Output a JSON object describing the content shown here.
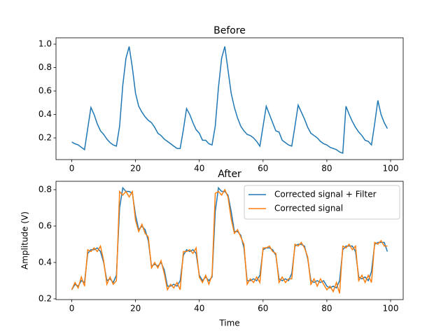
{
  "chart_data": [
    {
      "type": "line",
      "title": "Before",
      "x": [
        0,
        1,
        2,
        3,
        4,
        5,
        6,
        7,
        8,
        9,
        10,
        11,
        12,
        13,
        14,
        15,
        16,
        17,
        18,
        19,
        20,
        21,
        22,
        23,
        24,
        25,
        26,
        27,
        28,
        29,
        30,
        31,
        32,
        33,
        34,
        35,
        36,
        37,
        38,
        39,
        40,
        41,
        42,
        43,
        44,
        45,
        46,
        47,
        48,
        49,
        50,
        51,
        52,
        53,
        54,
        55,
        56,
        57,
        58,
        59,
        60,
        61,
        62,
        63,
        64,
        65,
        66,
        67,
        68,
        69,
        70,
        71,
        72,
        73,
        74,
        75,
        76,
        77,
        78,
        79,
        80,
        81,
        82,
        83,
        84,
        85,
        86,
        87,
        88,
        89,
        90,
        91,
        92,
        93,
        94,
        95,
        96,
        97,
        98,
        99
      ],
      "series": [
        {
          "color": "#1f77b4",
          "values": [
            0.165,
            0.15,
            0.14,
            0.12,
            0.1,
            0.28,
            0.46,
            0.4,
            0.32,
            0.26,
            0.23,
            0.19,
            0.16,
            0.14,
            0.13,
            0.3,
            0.65,
            0.88,
            0.98,
            0.8,
            0.58,
            0.47,
            0.42,
            0.38,
            0.35,
            0.33,
            0.29,
            0.24,
            0.22,
            0.19,
            0.17,
            0.15,
            0.13,
            0.11,
            0.11,
            0.27,
            0.45,
            0.4,
            0.33,
            0.27,
            0.24,
            0.18,
            0.18,
            0.15,
            0.14,
            0.3,
            0.63,
            0.88,
            0.98,
            0.78,
            0.58,
            0.46,
            0.37,
            0.3,
            0.26,
            0.23,
            0.22,
            0.2,
            0.17,
            0.13,
            0.3,
            0.47,
            0.4,
            0.33,
            0.26,
            0.25,
            0.18,
            0.16,
            0.14,
            0.13,
            0.3,
            0.48,
            0.42,
            0.36,
            0.29,
            0.24,
            0.22,
            0.2,
            0.17,
            0.15,
            0.14,
            0.12,
            0.11,
            0.1,
            0.08,
            0.07,
            0.47,
            0.4,
            0.34,
            0.29,
            0.25,
            0.22,
            0.18,
            0.17,
            0.14,
            0.32,
            0.52,
            0.4,
            0.33,
            0.28
          ]
        }
      ],
      "xlim": [
        -4.95,
        103.95
      ],
      "xticks": [
        0,
        20,
        40,
        60,
        80,
        100
      ],
      "ylim": [
        0.015,
        1.054
      ],
      "yticks": [
        0.2,
        0.4,
        0.6,
        0.8,
        {
          "value": 1,
          "label": "1.0"
        }
      ]
    },
    {
      "type": "line",
      "title": "After",
      "xlabel": "Time",
      "ylabel": "Amplitude (V)",
      "legend": "upper right",
      "x": [
        0,
        1,
        2,
        3,
        4,
        5,
        6,
        7,
        8,
        9,
        10,
        11,
        12,
        13,
        14,
        15,
        16,
        17,
        18,
        19,
        20,
        21,
        22,
        23,
        24,
        25,
        26,
        27,
        28,
        29,
        30,
        31,
        32,
        33,
        34,
        35,
        36,
        37,
        38,
        39,
        40,
        41,
        42,
        43,
        44,
        45,
        46,
        47,
        48,
        49,
        50,
        51,
        52,
        53,
        54,
        55,
        56,
        57,
        58,
        59,
        60,
        61,
        62,
        63,
        64,
        65,
        66,
        67,
        68,
        69,
        70,
        71,
        72,
        73,
        74,
        75,
        76,
        77,
        78,
        79,
        80,
        81,
        82,
        83,
        84,
        85,
        86,
        87,
        88,
        89,
        90,
        91,
        92,
        93,
        94,
        95,
        96,
        97,
        98,
        99
      ],
      "series": [
        {
          "name": "Corrected signal + Filter",
          "color": "#1f77b4",
          "values": [
            0.25,
            0.28,
            0.27,
            0.3,
            0.29,
            0.45,
            0.47,
            0.47,
            0.48,
            0.46,
            0.4,
            0.3,
            0.31,
            0.29,
            0.33,
            0.7,
            0.81,
            0.79,
            0.79,
            0.78,
            0.66,
            0.58,
            0.6,
            0.58,
            0.52,
            0.38,
            0.39,
            0.38,
            0.4,
            0.36,
            0.27,
            0.27,
            0.28,
            0.27,
            0.3,
            0.44,
            0.47,
            0.46,
            0.47,
            0.45,
            0.33,
            0.3,
            0.32,
            0.3,
            0.32,
            0.68,
            0.81,
            0.79,
            0.79,
            0.77,
            0.68,
            0.57,
            0.57,
            0.55,
            0.48,
            0.3,
            0.3,
            0.31,
            0.3,
            0.33,
            0.47,
            0.48,
            0.48,
            0.47,
            0.44,
            0.31,
            0.3,
            0.31,
            0.3,
            0.34,
            0.49,
            0.5,
            0.5,
            0.49,
            0.42,
            0.3,
            0.29,
            0.3,
            0.29,
            0.3,
            0.27,
            0.26,
            0.27,
            0.26,
            0.3,
            0.47,
            0.49,
            0.49,
            0.49,
            0.46,
            0.32,
            0.31,
            0.32,
            0.3,
            0.35,
            0.5,
            0.51,
            0.51,
            0.51,
            0.46
          ]
        },
        {
          "name": "Corrected signal",
          "color": "#ff7f0e",
          "values": [
            0.25,
            0.29,
            0.26,
            0.32,
            0.27,
            0.47,
            0.46,
            0.48,
            0.46,
            0.49,
            0.41,
            0.28,
            0.32,
            0.28,
            0.3,
            0.79,
            0.77,
            0.79,
            0.76,
            0.79,
            0.63,
            0.57,
            0.61,
            0.56,
            0.54,
            0.37,
            0.4,
            0.37,
            0.41,
            0.34,
            0.25,
            0.28,
            0.26,
            0.29,
            0.25,
            0.46,
            0.46,
            0.47,
            0.45,
            0.48,
            0.32,
            0.29,
            0.33,
            0.28,
            0.33,
            0.78,
            0.79,
            0.77,
            0.8,
            0.76,
            0.64,
            0.56,
            0.58,
            0.54,
            0.5,
            0.28,
            0.31,
            0.29,
            0.32,
            0.29,
            0.48,
            0.48,
            0.49,
            0.46,
            0.45,
            0.29,
            0.32,
            0.29,
            0.31,
            0.31,
            0.5,
            0.49,
            0.51,
            0.48,
            0.43,
            0.28,
            0.31,
            0.27,
            0.31,
            0.28,
            0.25,
            0.27,
            0.24,
            0.29,
            0.23,
            0.49,
            0.48,
            0.5,
            0.47,
            0.49,
            0.3,
            0.33,
            0.29,
            0.33,
            0.29,
            0.51,
            0.5,
            0.52,
            0.49,
            0.49
          ]
        }
      ],
      "xlim": [
        -4.95,
        103.95
      ],
      "xticks": [
        0,
        20,
        40,
        60,
        80,
        100
      ],
      "ylim": [
        0.196,
        0.846
      ],
      "yticks": [
        0.2,
        0.4,
        0.6,
        0.8
      ]
    }
  ]
}
